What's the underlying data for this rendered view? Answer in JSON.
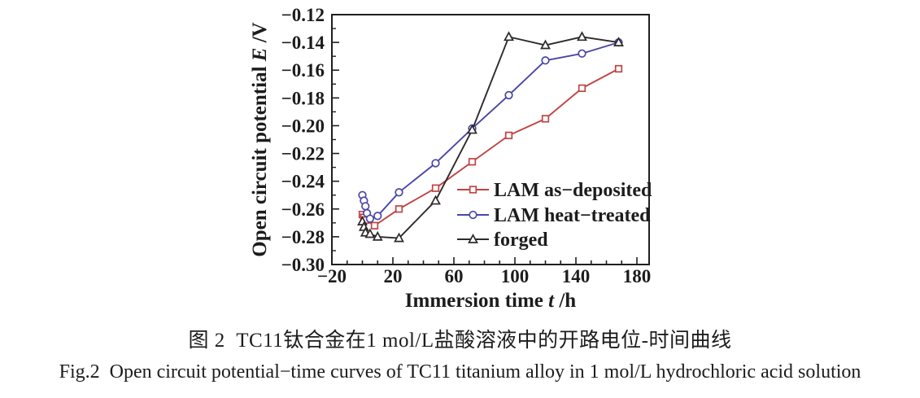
{
  "figure": {
    "caption_zh": "图 2  TC11钛合金在1 mol/L盐酸溶液中的开路电位-时间曲线",
    "caption_en": "Fig.2  Open circuit potential−time curves of TC11 titanium alloy in 1 mol/L hydrochloric acid solution"
  },
  "chart_data": {
    "type": "line",
    "title": "",
    "xlabel": "Immersion time t /h",
    "xlabel_parts": {
      "prefix": "Immersion time ",
      "var": "t",
      "suffix": " /h"
    },
    "ylabel": "Open circuit potential E /V",
    "ylabel_parts": {
      "prefix": "Open circuit potential ",
      "var": "E",
      "suffix": " /V"
    },
    "xlim": [
      -20,
      188
    ],
    "ylim": [
      -0.3,
      -0.12
    ],
    "x_major_ticks": [
      -20,
      20,
      60,
      100,
      140,
      180
    ],
    "x_minor_step": 10,
    "y_major_step": 0.02,
    "y_minor_step": 0.01,
    "grid": false,
    "axis_color": "#1f1f1f",
    "legend": {
      "position": "inside-lower-right",
      "box": false
    },
    "series": [
      {
        "name": "LAM as−deposited",
        "marker": "square",
        "color": "#c04444",
        "points": [
          [
            0,
            -0.264
          ],
          [
            1,
            -0.266
          ],
          [
            2,
            -0.268
          ],
          [
            8,
            -0.272
          ],
          [
            24,
            -0.26
          ],
          [
            48,
            -0.245
          ],
          [
            72,
            -0.226
          ],
          [
            96,
            -0.207
          ],
          [
            120,
            -0.195
          ],
          [
            144,
            -0.173
          ],
          [
            168,
            -0.159
          ]
        ]
      },
      {
        "name": "LAM heat−treated",
        "marker": "circle",
        "color": "#4947a6",
        "points": [
          [
            0,
            -0.25
          ],
          [
            1,
            -0.254
          ],
          [
            2,
            -0.258
          ],
          [
            3,
            -0.263
          ],
          [
            5,
            -0.267
          ],
          [
            10,
            -0.265
          ],
          [
            24,
            -0.248
          ],
          [
            48,
            -0.227
          ],
          [
            72,
            -0.202
          ],
          [
            96,
            -0.178
          ],
          [
            120,
            -0.153
          ],
          [
            144,
            -0.148
          ],
          [
            168,
            -0.14
          ]
        ]
      },
      {
        "name": "forged",
        "marker": "triangle",
        "color": "#2e2a2b",
        "points": [
          [
            0,
            -0.269
          ],
          [
            1,
            -0.273
          ],
          [
            2,
            -0.277
          ],
          [
            5,
            -0.278
          ],
          [
            10,
            -0.28
          ],
          [
            24,
            -0.281
          ],
          [
            48,
            -0.254
          ],
          [
            72,
            -0.203
          ],
          [
            96,
            -0.136
          ],
          [
            120,
            -0.142
          ],
          [
            144,
            -0.136
          ],
          [
            168,
            -0.14
          ]
        ]
      }
    ]
  }
}
